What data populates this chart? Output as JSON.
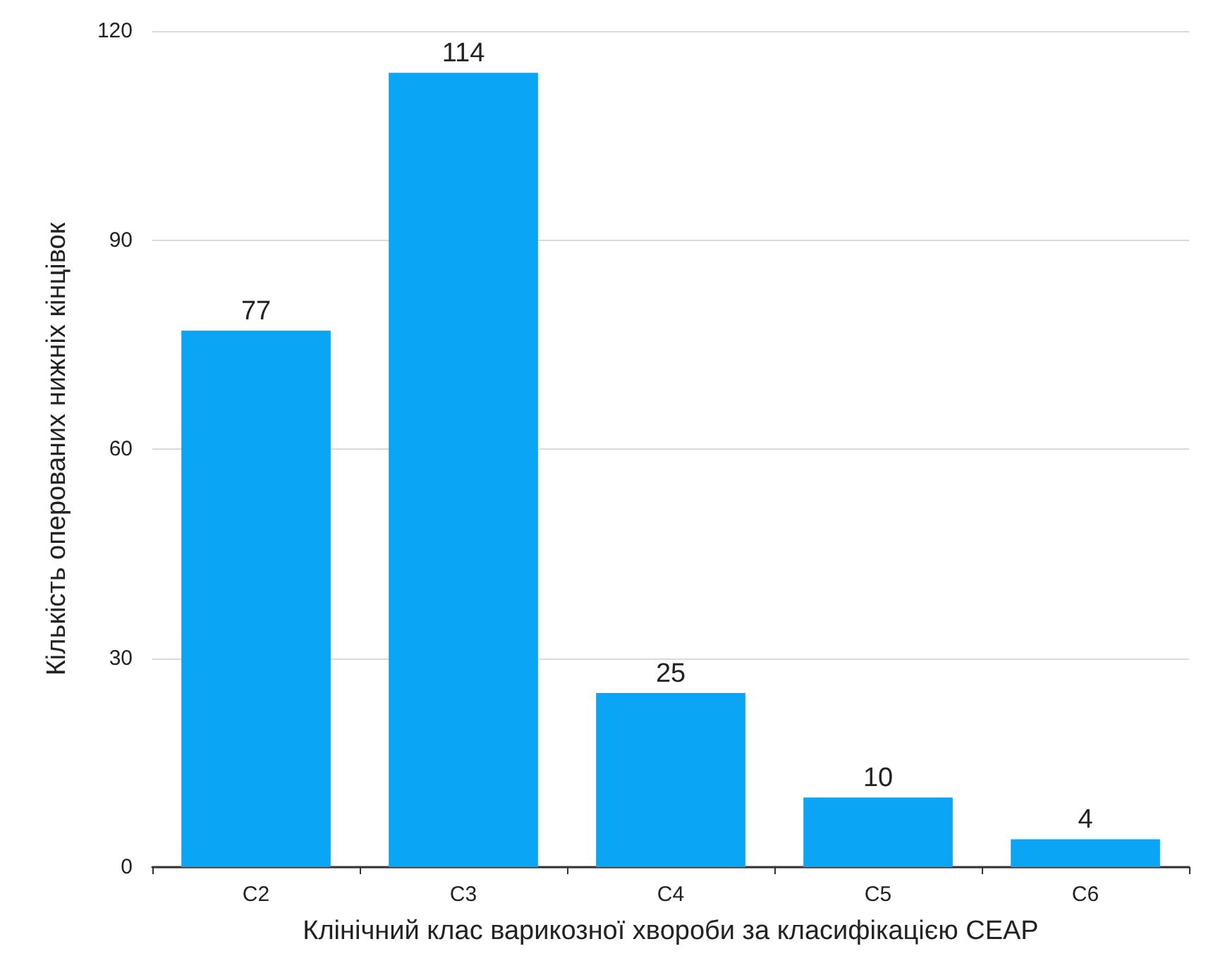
{
  "chart_data": {
    "type": "bar",
    "xlabel": "Клінічний клас варикозної хвороби за класифікацією CEAP",
    "ylabel": "Кількість оперованих нижніх кінцівок",
    "categories": [
      "C2",
      "C3",
      "C4",
      "C5",
      "C6"
    ],
    "values": [
      77,
      114,
      25,
      10,
      4
    ],
    "color": "#0aa5f5",
    "ylim": [
      0,
      120
    ],
    "yticks": [
      0,
      30,
      60,
      90,
      120
    ],
    "grid": "y",
    "data_labels": true
  }
}
